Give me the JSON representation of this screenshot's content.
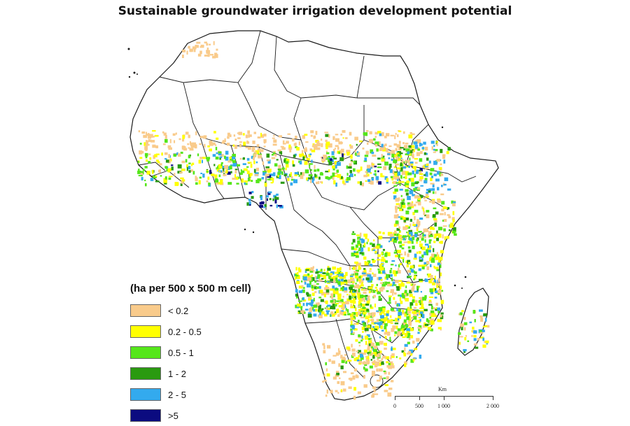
{
  "title": "Sustainable groundwater irrigation development potential",
  "legend": {
    "title": "(ha per 500 x 500 m cell)",
    "items": [
      {
        "label": "< 0.2",
        "color": "#f9cb8b"
      },
      {
        "label": "0.2 - 0.5",
        "color": "#ffff00"
      },
      {
        "label": "0.5 - 1",
        "color": "#55e61a"
      },
      {
        "label": "1 - 2",
        "color": "#2a9a10"
      },
      {
        "label": "2 - 5",
        "color": "#33aaee"
      },
      {
        "label": ">5",
        "color": "#0b0b80"
      }
    ]
  },
  "scale": {
    "unit": "Km",
    "ticks": [
      "0",
      "500",
      "1 000",
      "2 000"
    ]
  }
}
